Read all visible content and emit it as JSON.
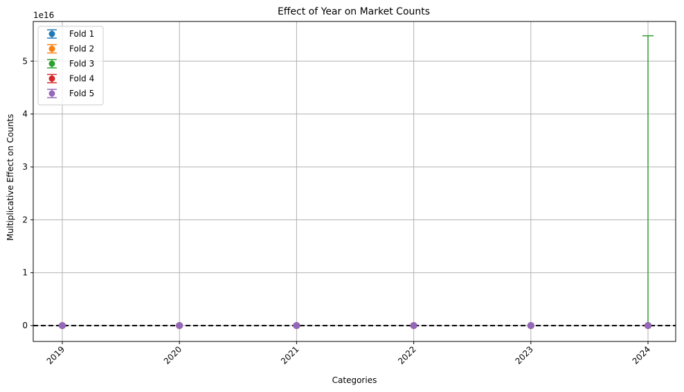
{
  "chart_data": {
    "type": "scatter",
    "title": "Effect of Year on Market Counts",
    "xlabel": "Categories",
    "ylabel": "Multiplicative Effect on Counts",
    "categories": [
      "2019",
      "2020",
      "2021",
      "2022",
      "2023",
      "2024"
    ],
    "y_scale_label": "1e16",
    "y_ticks": [
      0,
      1,
      2,
      3,
      4,
      5
    ],
    "y_tick_labels": [
      "0",
      "1",
      "2",
      "3",
      "4",
      "5"
    ],
    "ylim": [
      -0.3,
      5.75
    ],
    "y_units": "×1e16",
    "grid": true,
    "legend_position": "top-left",
    "reference_line": {
      "y": 0,
      "style": "dashed",
      "color": "#000000"
    },
    "series": [
      {
        "name": "Fold 1",
        "color": "#1f77b4",
        "values": [
          0,
          0,
          0,
          0,
          0,
          0
        ],
        "error_upper": [
          0,
          0,
          0,
          0,
          0,
          0
        ]
      },
      {
        "name": "Fold 2",
        "color": "#ff7f0e",
        "values": [
          0,
          0,
          0,
          0,
          0,
          0
        ],
        "error_upper": [
          0,
          0,
          0,
          0,
          0,
          0
        ]
      },
      {
        "name": "Fold 3",
        "color": "#2ca02c",
        "values": [
          0,
          0,
          0,
          0,
          0,
          0
        ],
        "error_upper": [
          0,
          0,
          0,
          0,
          0,
          5.48
        ]
      },
      {
        "name": "Fold 4",
        "color": "#d62728",
        "values": [
          0,
          0,
          0,
          0,
          0,
          0
        ],
        "error_upper": [
          0,
          0,
          0,
          0,
          0,
          0
        ]
      },
      {
        "name": "Fold 5",
        "color": "#9467bd",
        "values": [
          0,
          0,
          0,
          0,
          0,
          0
        ],
        "error_upper": [
          0,
          0,
          0,
          0,
          0,
          0
        ]
      }
    ]
  }
}
